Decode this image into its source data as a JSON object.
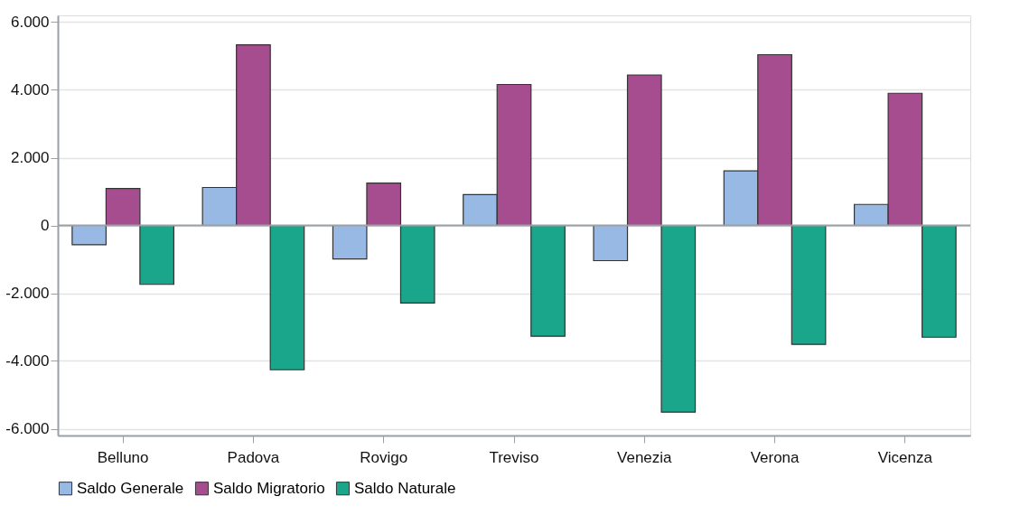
{
  "chart_data": {
    "type": "bar",
    "categories": [
      "Belluno",
      "Padova",
      "Rovigo",
      "Treviso",
      "Venezia",
      "Verona",
      "Vicenza"
    ],
    "series": [
      {
        "name": "Saldo Generale",
        "color": "#98b9e3",
        "values": [
          -570,
          1120,
          -990,
          910,
          -1040,
          1610,
          620
        ]
      },
      {
        "name": "Saldo Migratorio",
        "color": "#a64d8f",
        "values": [
          1090,
          5330,
          1250,
          4160,
          4440,
          5040,
          3900
        ]
      },
      {
        "name": "Saldo Naturale",
        "color": "#19a68a",
        "values": [
          -1740,
          -4260,
          -2290,
          -3270,
          -5510,
          -3510,
          -3300
        ]
      }
    ],
    "ylim": [
      -6200,
      6200
    ],
    "yticks": [
      {
        "value": -6000,
        "label": "-6.000"
      },
      {
        "value": -4000,
        "label": "-4.000"
      },
      {
        "value": -2000,
        "label": "-2.000"
      },
      0,
      {
        "value": 2000,
        "label": "2.000"
      },
      {
        "value": 4000,
        "label": "4.000"
      },
      {
        "value": 6000,
        "label": "6.000"
      }
    ],
    "ref_lines": [
      {
        "axis": "y",
        "value": 0,
        "color": "#9aa0a6"
      }
    ],
    "grid": "y",
    "legend": "bottom"
  }
}
